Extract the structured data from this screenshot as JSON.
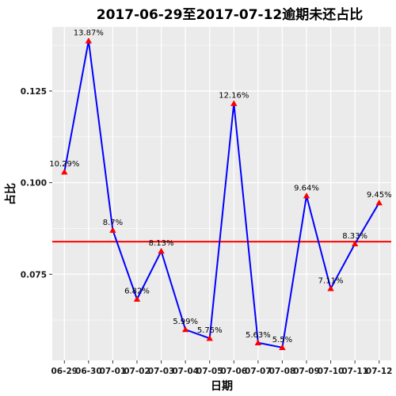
{
  "chart_data": {
    "type": "line",
    "title": "2017-06-29至2017-07-12逾期未还占比",
    "xlabel": "日期",
    "ylabel": "占比",
    "categories": [
      "06-29",
      "06-30",
      "07-01",
      "07-02",
      "07-03",
      "07-04",
      "07-05",
      "07-06",
      "07-07",
      "07-08",
      "07-09",
      "07-10",
      "07-11",
      "07-12"
    ],
    "values": [
      0.1029,
      0.1387,
      0.087,
      0.0682,
      0.0813,
      0.0599,
      0.0575,
      0.1216,
      0.0563,
      0.055,
      0.0964,
      0.0711,
      0.0833,
      0.0945
    ],
    "point_labels": [
      "10.29%",
      "13.87%",
      "8.7%",
      "6.82%",
      "8.13%",
      "5.99%",
      "5.75%",
      "12.16%",
      "5.63%",
      "5.5%",
      "9.64%",
      "7.11%",
      "8.33%",
      "9.45%"
    ],
    "ylim": [
      0.0515,
      0.1425
    ],
    "yticks": [
      0.075,
      0.1,
      0.125
    ],
    "ytick_labels": [
      "0.075",
      "0.100",
      "0.125"
    ],
    "reference_line": 0.0839,
    "grid": true,
    "colors": {
      "line": "#0000ff",
      "points": "#ff0000",
      "reference_line": "#ff0000",
      "panel": "#ebebeb",
      "grid": "#ffffff"
    }
  }
}
